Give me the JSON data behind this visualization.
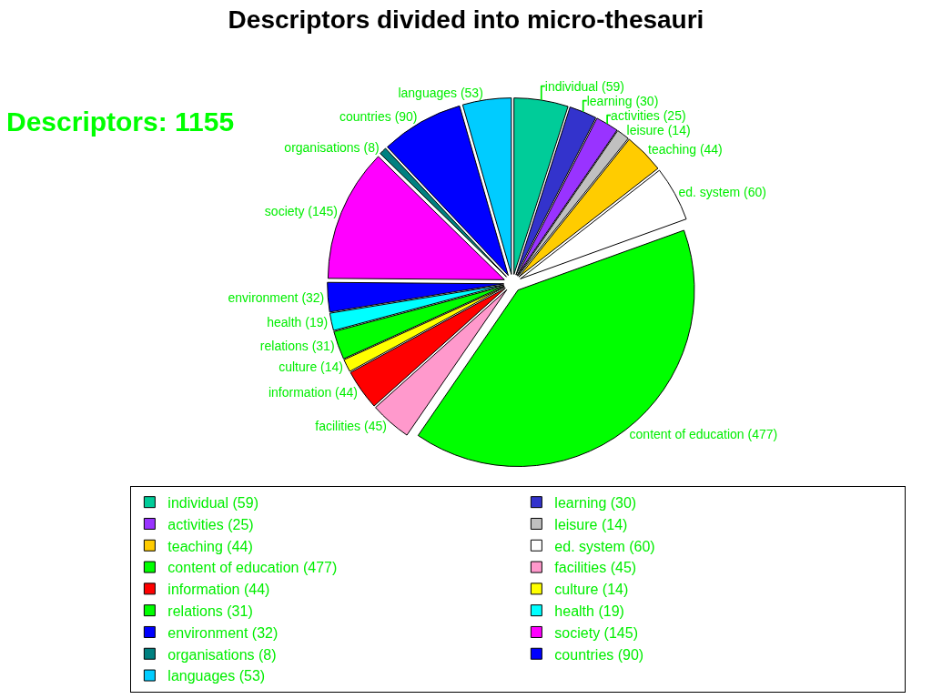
{
  "chart_data": {
    "type": "pie",
    "title": "Descriptors divided into micro-thesauri",
    "annotations": [
      "Descriptors: 1155"
    ],
    "categories": [
      "individual (59)",
      "learning (30)",
      "activities (25)",
      "leisure (14)",
      "teaching (44)",
      "ed. system (60)",
      "content of education (477)",
      "facilities (45)",
      "information (44)",
      "culture (14)",
      "relations (31)",
      "health (19)",
      "environment (32)",
      "society (145)",
      "organisations (8)",
      "countries (90)",
      "languages (53)"
    ],
    "values": [
      59,
      30,
      25,
      14,
      44,
      60,
      477,
      45,
      44,
      14,
      31,
      19,
      32,
      145,
      8,
      90,
      53
    ],
    "colors": [
      "#00cc99",
      "#3333cc",
      "#9933ff",
      "#c0c0c0",
      "#ffcc00",
      "#ffffff",
      "#00ff00",
      "#ff99cc",
      "#ff0000",
      "#ffff00",
      "#00ff00",
      "#00ffff",
      "#0000ff",
      "#ff00ff",
      "#008080",
      "#0000ff",
      "#00ccff"
    ],
    "legend": "bottom"
  }
}
